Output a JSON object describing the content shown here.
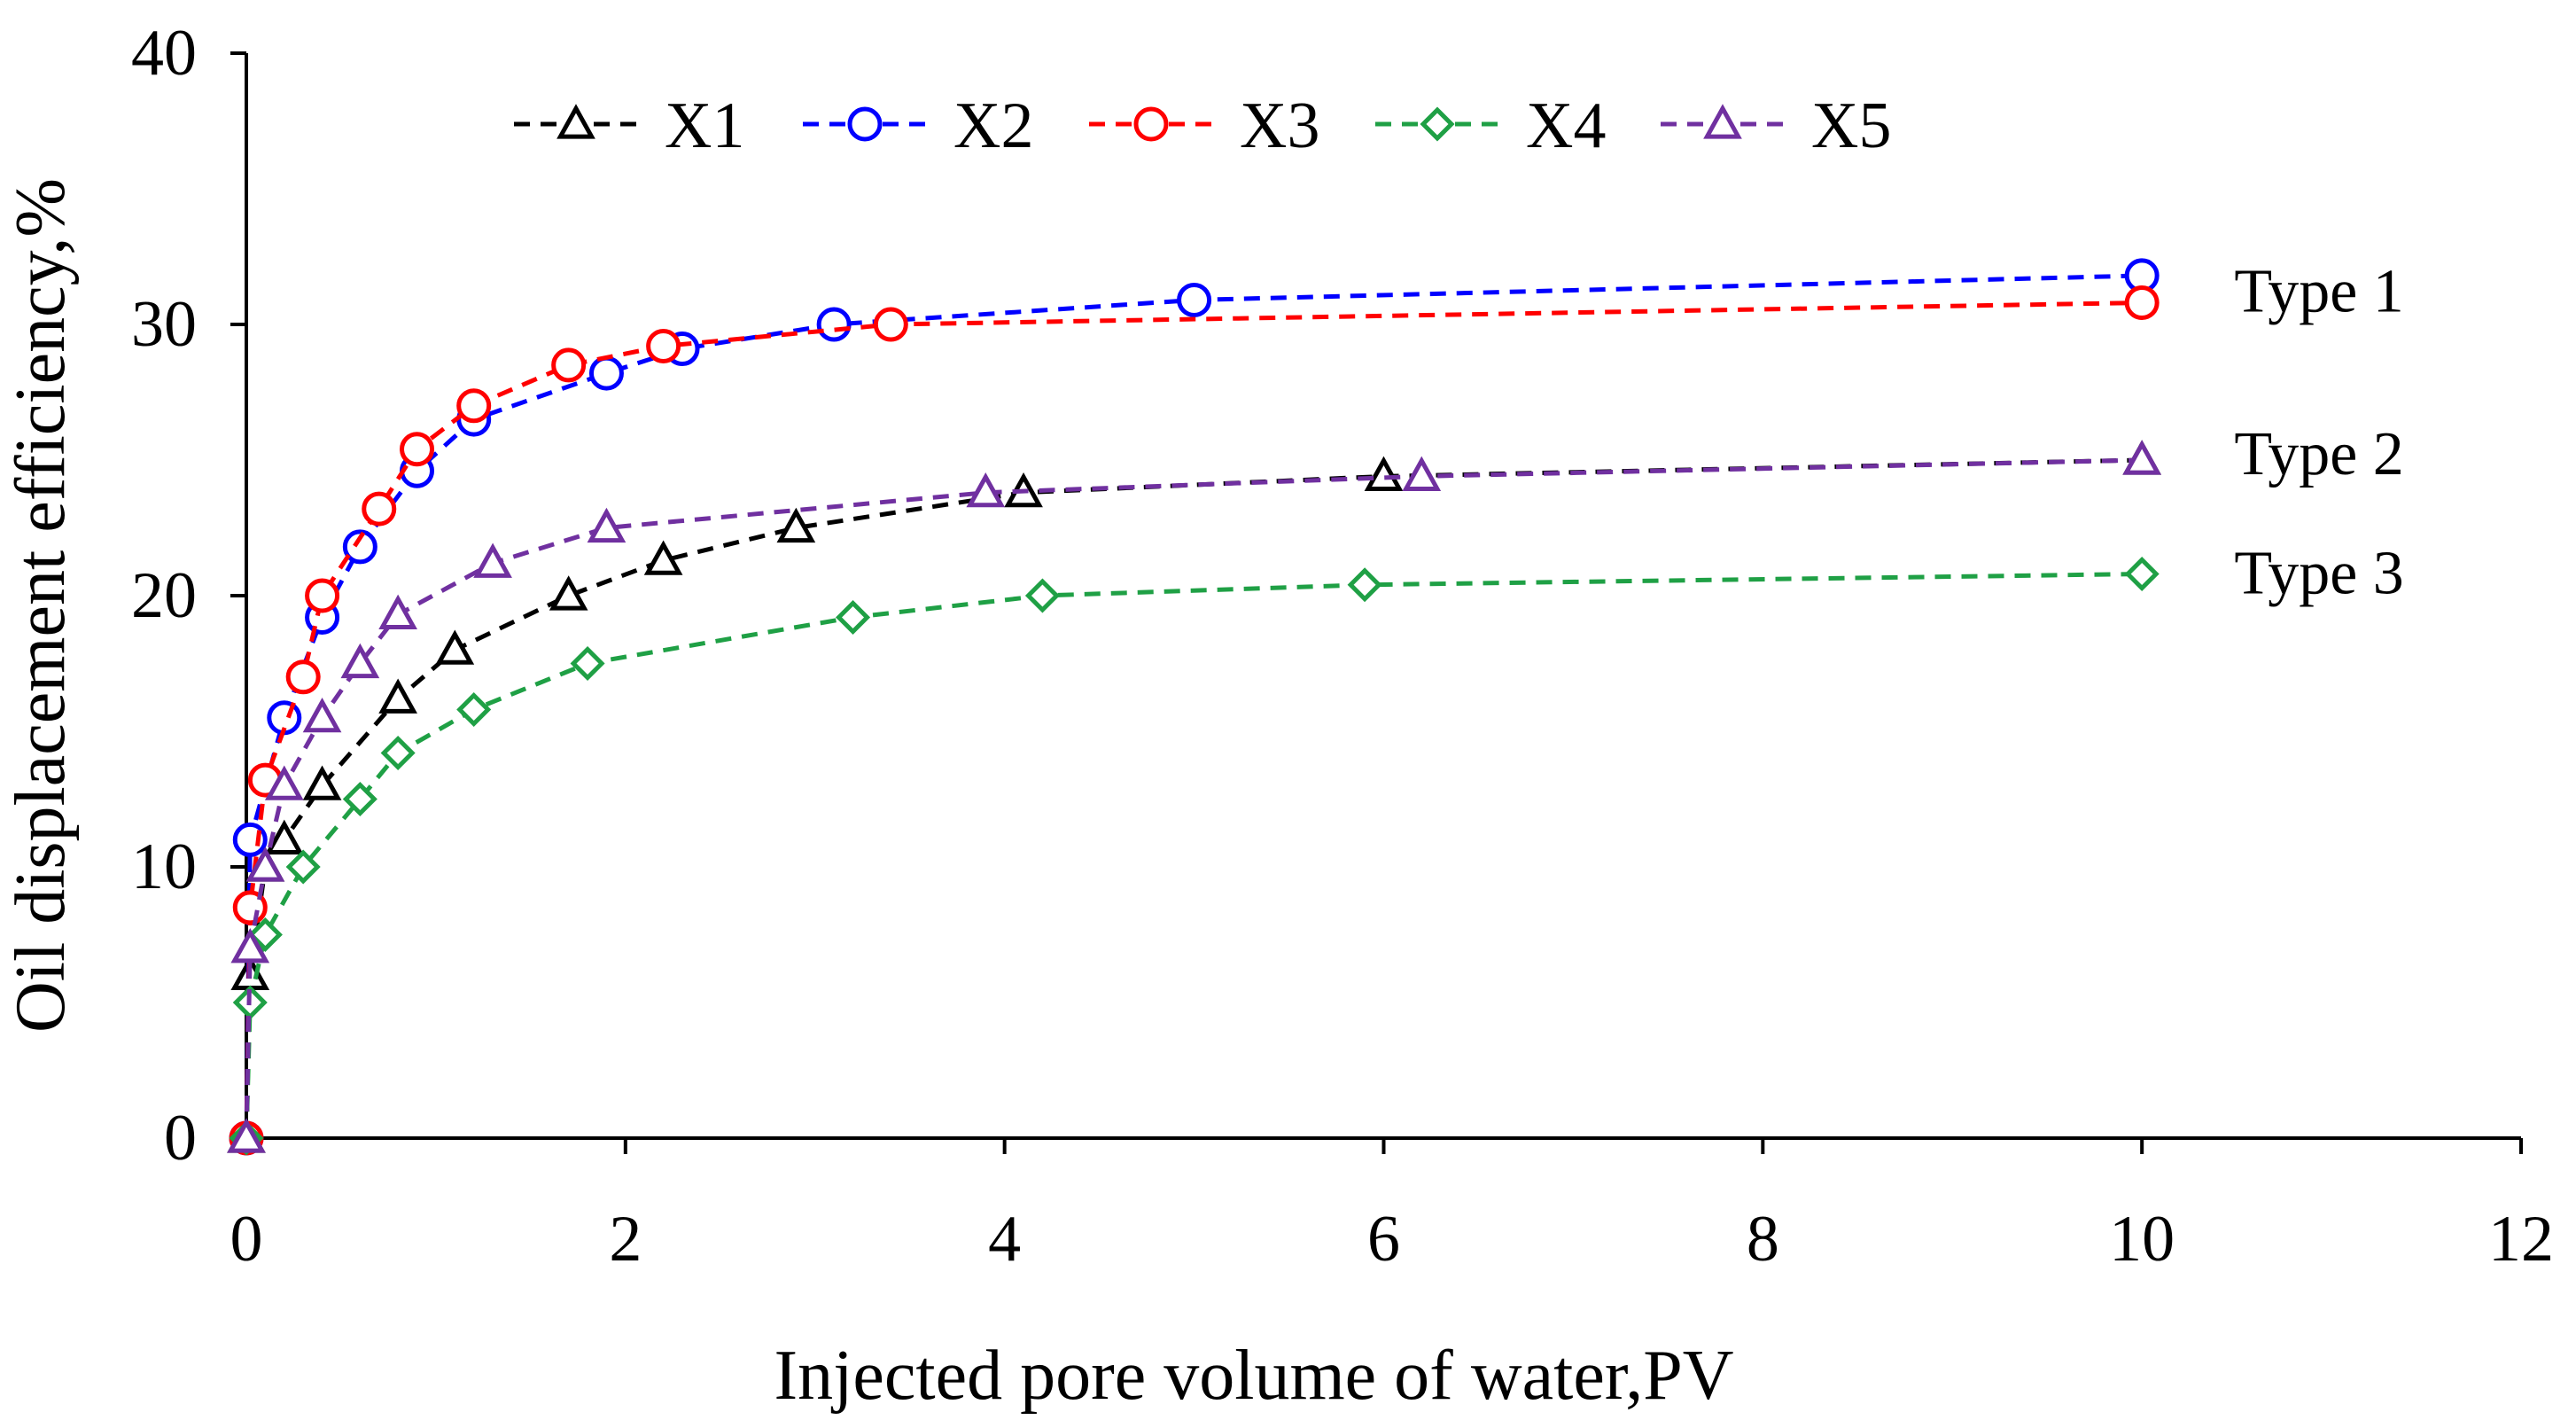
{
  "chart_data": {
    "type": "line",
    "title": "",
    "xlabel": "Injected pore volume of water,PV",
    "ylabel": "Oil displacement efficiency,%",
    "xlim": [
      0,
      12
    ],
    "ylim": [
      0,
      40
    ],
    "xticks": [
      "0",
      "2",
      "4",
      "6",
      "8",
      "10",
      "12"
    ],
    "yticks": [
      "0",
      "10",
      "20",
      "30",
      "40"
    ],
    "grid": false,
    "legend_position": "top",
    "series": [
      {
        "name": "X1",
        "color": "#000000",
        "marker": "triangle",
        "x": [
          0,
          0.02,
          0.1,
          0.2,
          0.4,
          0.8,
          1.1,
          1.7,
          2.2,
          2.9,
          4.1,
          6.0,
          10.0
        ],
        "y": [
          0,
          6,
          10,
          11,
          13,
          16.2,
          18,
          20,
          21.3,
          22.5,
          23.8,
          24.4,
          25.0
        ]
      },
      {
        "name": "X2",
        "color": "#0000ff",
        "marker": "circle",
        "x": [
          0,
          0.02,
          0.2,
          0.4,
          0.6,
          0.9,
          1.2,
          1.9,
          2.3,
          3.1,
          5.0,
          10.0
        ],
        "y": [
          0,
          11,
          15.5,
          19.2,
          21.8,
          24.6,
          26.5,
          28.2,
          29.1,
          30.0,
          30.9,
          31.8
        ]
      },
      {
        "name": "X3",
        "color": "#ff0000",
        "marker": "circle",
        "x": [
          0,
          0.02,
          0.1,
          0.3,
          0.4,
          0.7,
          0.9,
          1.2,
          1.7,
          2.2,
          3.4,
          10.0
        ],
        "y": [
          0,
          8.5,
          13.2,
          17.0,
          20.0,
          23.2,
          25.4,
          27.0,
          28.5,
          29.2,
          30.0,
          30.8
        ]
      },
      {
        "name": "X4",
        "color": "#1fa045",
        "marker": "diamond",
        "x": [
          0,
          0.02,
          0.1,
          0.3,
          0.6,
          0.8,
          1.2,
          1.8,
          3.2,
          4.2,
          5.9,
          10.0
        ],
        "y": [
          0,
          5.0,
          7.5,
          10.0,
          12.5,
          14.2,
          15.8,
          17.5,
          19.2,
          20.0,
          20.4,
          20.8
        ]
      },
      {
        "name": "X5",
        "color": "#7030a0",
        "marker": "triangle",
        "x": [
          0,
          0.02,
          0.1,
          0.2,
          0.4,
          0.6,
          0.8,
          1.3,
          1.9,
          3.9,
          6.2,
          10.0
        ],
        "y": [
          0,
          7.0,
          10.0,
          13.0,
          15.5,
          17.5,
          19.3,
          21.2,
          22.5,
          23.8,
          24.4,
          25.0
        ]
      }
    ],
    "annotations": [
      {
        "text": "Type 1",
        "x": 10.3,
        "y": 31.2
      },
      {
        "text": "Type 2",
        "x": 10.3,
        "y": 25.2
      },
      {
        "text": "Type 3",
        "x": 10.3,
        "y": 20.8
      }
    ]
  }
}
